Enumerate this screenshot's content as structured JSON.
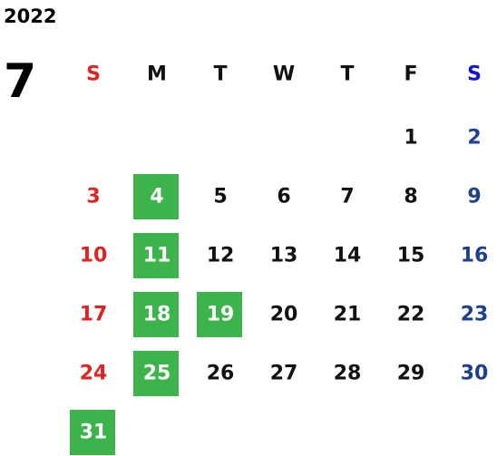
{
  "year": "2022",
  "month": "7",
  "weekdays": [
    "S",
    "M",
    "T",
    "W",
    "T",
    "F",
    "S"
  ],
  "weeks": [
    [
      null,
      null,
      null,
      null,
      null,
      {
        "day": 1,
        "highlight": false
      },
      {
        "day": 2,
        "highlight": false
      }
    ],
    [
      {
        "day": 3,
        "highlight": false
      },
      {
        "day": 4,
        "highlight": true
      },
      {
        "day": 5,
        "highlight": false
      },
      {
        "day": 6,
        "highlight": false
      },
      {
        "day": 7,
        "highlight": false
      },
      {
        "day": 8,
        "highlight": false
      },
      {
        "day": 9,
        "highlight": false
      }
    ],
    [
      {
        "day": 10,
        "highlight": false
      },
      {
        "day": 11,
        "highlight": true
      },
      {
        "day": 12,
        "highlight": false
      },
      {
        "day": 13,
        "highlight": false
      },
      {
        "day": 14,
        "highlight": false
      },
      {
        "day": 15,
        "highlight": false
      },
      {
        "day": 16,
        "highlight": false
      }
    ],
    [
      {
        "day": 17,
        "highlight": false
      },
      {
        "day": 18,
        "highlight": true
      },
      {
        "day": 19,
        "highlight": true
      },
      {
        "day": 20,
        "highlight": false
      },
      {
        "day": 21,
        "highlight": false
      },
      {
        "day": 22,
        "highlight": false
      },
      {
        "day": 23,
        "highlight": false
      }
    ],
    [
      {
        "day": 24,
        "highlight": false
      },
      {
        "day": 25,
        "highlight": true
      },
      {
        "day": 26,
        "highlight": false
      },
      {
        "day": 27,
        "highlight": false
      },
      {
        "day": 28,
        "highlight": false
      },
      {
        "day": 29,
        "highlight": false
      },
      {
        "day": 30,
        "highlight": false
      }
    ],
    [
      {
        "day": 31,
        "highlight": true
      },
      null,
      null,
      null,
      null,
      null,
      null
    ]
  ],
  "colors": {
    "text": "#111111",
    "sunday": "#e02222",
    "saturday_header": "#1414d2",
    "saturday": "#1f3f8f",
    "highlight": "#3cb44b",
    "highlight_text": "#ffffff"
  }
}
